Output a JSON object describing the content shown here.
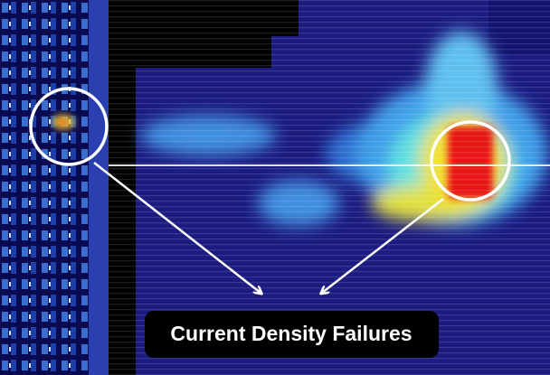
{
  "annotation": {
    "label": "Current Density Failures"
  }
}
